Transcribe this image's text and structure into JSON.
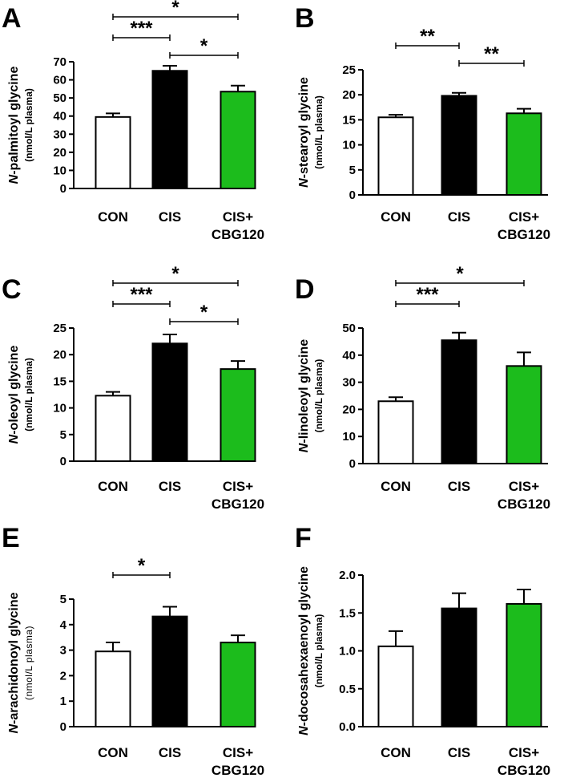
{
  "colors": {
    "CON": "#ffffff",
    "CIS": "#000000",
    "CIS+CBG120": "#1cbc1c"
  },
  "chart_data": [
    {
      "type": "bar",
      "panel": "A",
      "ylabel_italic": "N",
      "ylabel_rest": "-palmitoyl glycine",
      "ylabel_unit": "(nmol/L plasma)",
      "categories": [
        "CON",
        "CIS",
        "CIS+\nCBG120"
      ],
      "values": [
        39.5,
        65,
        53.5
      ],
      "errors": [
        2,
        2.8,
        3.3
      ],
      "ylim": [
        0,
        70
      ],
      "yticks": [
        "0",
        "10",
        "20",
        "30",
        "40",
        "50",
        "60",
        "70"
      ],
      "significance": [
        {
          "from": 0,
          "to": 2,
          "label": "*"
        },
        {
          "from": 0,
          "to": 1,
          "label": "***"
        },
        {
          "from": 1,
          "to": 2,
          "label": "*"
        }
      ]
    },
    {
      "type": "bar",
      "panel": "B",
      "ylabel_italic": "N",
      "ylabel_rest": "-stearoyl glycine",
      "ylabel_unit": "(nmol/L plasma)",
      "categories": [
        "CON",
        "CIS",
        "CIS+\nCBG120"
      ],
      "values": [
        15.5,
        19.8,
        16.3
      ],
      "errors": [
        0.5,
        0.6,
        0.9
      ],
      "ylim": [
        0,
        25
      ],
      "yticks": [
        "0",
        "5",
        "10",
        "15",
        "20",
        "25"
      ],
      "significance": [
        {
          "from": 0,
          "to": 1,
          "label": "**"
        },
        {
          "from": 1,
          "to": 2,
          "label": "**"
        }
      ]
    },
    {
      "type": "bar",
      "panel": "C",
      "ylabel_italic": "N",
      "ylabel_rest": "-oleoyl glycine",
      "ylabel_unit": "(nmol/L plasma)",
      "categories": [
        "CON",
        "CIS",
        "CIS+\nCBG120"
      ],
      "values": [
        12.3,
        22.1,
        17.3
      ],
      "errors": [
        0.7,
        1.7,
        1.5
      ],
      "ylim": [
        0,
        25
      ],
      "yticks": [
        "0",
        "5",
        "10",
        "15",
        "20",
        "25"
      ],
      "significance": [
        {
          "from": 0,
          "to": 2,
          "label": "*"
        },
        {
          "from": 0,
          "to": 1,
          "label": "***"
        },
        {
          "from": 1,
          "to": 2,
          "label": "*"
        }
      ]
    },
    {
      "type": "bar",
      "panel": "D",
      "ylabel_italic": "N",
      "ylabel_rest": "-linoleoyl glycine",
      "ylabel_unit": "(nmol/L plasma)",
      "categories": [
        "CON",
        "CIS",
        "CIS+\nCBG120"
      ],
      "values": [
        23,
        45.5,
        36
      ],
      "errors": [
        1.5,
        2.8,
        5
      ],
      "ylim": [
        0,
        50
      ],
      "yticks": [
        "0",
        "10",
        "20",
        "30",
        "40",
        "50"
      ],
      "significance": [
        {
          "from": 0,
          "to": 2,
          "label": "*"
        },
        {
          "from": 0,
          "to": 1,
          "label": "***"
        }
      ]
    },
    {
      "type": "bar",
      "panel": "E",
      "ylabel_italic": "N",
      "ylabel_rest": "-arachidonoyl glycine",
      "ylabel_unit": "(nmol/L plasma)",
      "unit_light": true,
      "categories": [
        "CON",
        "CIS",
        "CIS+\nCBG120"
      ],
      "values": [
        2.95,
        4.32,
        3.3
      ],
      "errors": [
        0.35,
        0.38,
        0.28
      ],
      "ylim": [
        0,
        5
      ],
      "yticks": [
        "0",
        "1",
        "2",
        "3",
        "4",
        "5"
      ],
      "significance": [
        {
          "from": 0,
          "to": 1,
          "label": "*"
        }
      ]
    },
    {
      "type": "bar",
      "panel": "F",
      "ylabel_italic": "N",
      "ylabel_rest": "-docosahexaenoyl glycine",
      "ylabel_unit": "(nmol/L plasma)",
      "categories": [
        "CON",
        "CIS",
        "CIS+\nCBG120"
      ],
      "values": [
        1.06,
        1.56,
        1.62
      ],
      "errors": [
        0.2,
        0.2,
        0.19
      ],
      "ylim": [
        0,
        2.0
      ],
      "yticks": [
        "0.0",
        "0.5",
        "1.0",
        "1.5",
        "2.0"
      ],
      "significance": []
    }
  ]
}
